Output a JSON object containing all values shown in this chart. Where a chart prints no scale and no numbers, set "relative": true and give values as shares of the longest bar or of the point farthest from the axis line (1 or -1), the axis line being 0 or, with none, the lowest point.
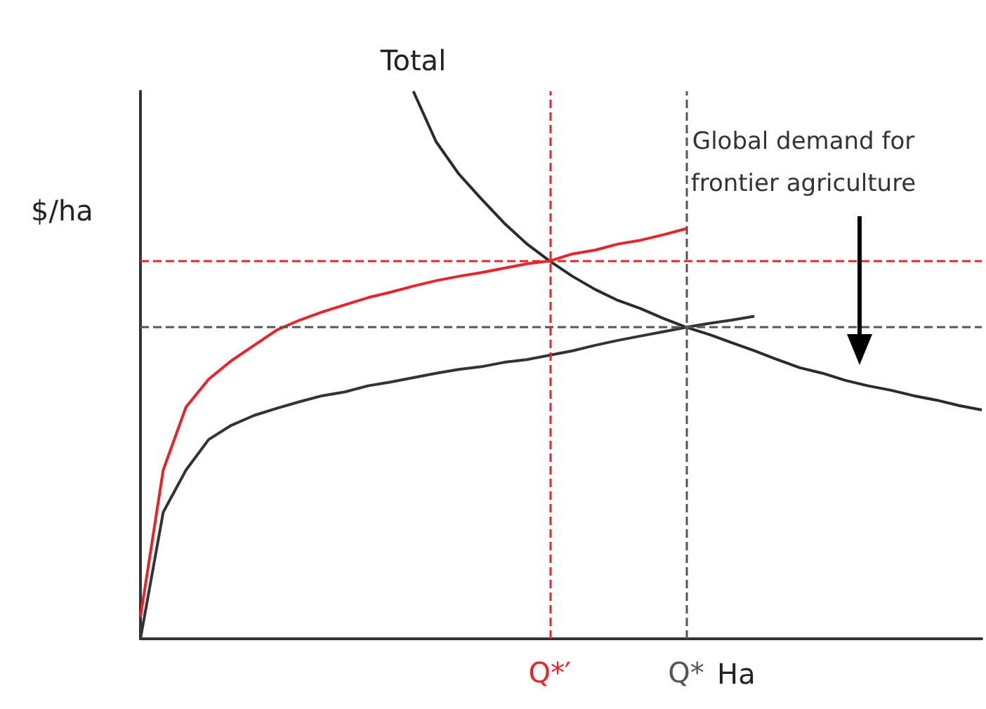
{
  "chart_data": {
    "type": "line",
    "relative": true,
    "ylabel": "$/ha",
    "xlabel": "Ha",
    "legend": false,
    "grid": false,
    "marker": "none",
    "tick_labels": "x",
    "categories": [
      null,
      null,
      null,
      null,
      null,
      null,
      null,
      null,
      null,
      null,
      null,
      null,
      null,
      null,
      null,
      null,
      null,
      null,
      "Q*′",
      null,
      null,
      null,
      null,
      null,
      "Q*",
      null,
      null,
      null,
      null,
      null,
      null,
      null,
      null,
      null,
      null,
      null,
      null,
      null
    ],
    "annotations": [
      "Global demand for\nfrontier agriculture"
    ],
    "series": [
      {
        "name": "Total",
        "color": "#2b2b2b",
        "values": [
          null,
          null,
          null,
          null,
          null,
          null,
          null,
          null,
          null,
          null,
          null,
          null,
          1.0,
          0.908,
          0.849,
          0.803,
          0.759,
          0.721,
          0.69,
          0.662,
          0.638,
          0.618,
          0.603,
          0.585,
          0.569,
          0.556,
          0.541,
          0.526,
          0.51,
          0.495,
          0.485,
          0.472,
          0.462,
          0.454,
          0.444,
          0.436,
          0.426,
          0.418
        ]
      },
      {
        "color": "#e8242a",
        "values": [
          0.04,
          0.308,
          0.423,
          0.474,
          0.508,
          0.536,
          0.564,
          0.582,
          0.597,
          0.61,
          0.623,
          0.633,
          0.644,
          0.654,
          0.662,
          0.669,
          0.677,
          0.685,
          0.69,
          0.703,
          0.71,
          0.721,
          0.728,
          0.738,
          0.749,
          null,
          null,
          null,
          null,
          null,
          null,
          null,
          null,
          null,
          null,
          null,
          null,
          null
        ]
      },
      {
        "color": "#333333",
        "values": [
          0,
          0.231,
          0.308,
          0.364,
          0.39,
          0.408,
          0.421,
          0.433,
          0.444,
          0.451,
          0.462,
          0.469,
          0.477,
          0.485,
          0.492,
          0.497,
          0.505,
          0.51,
          0.518,
          0.526,
          0.536,
          0.545,
          0.553,
          0.561,
          0.569,
          0.576,
          0.582,
          0.589,
          null,
          null,
          null,
          null,
          null,
          null,
          null,
          null,
          null,
          null
        ]
      }
    ],
    "ref_lines": [
      {
        "axis": "y",
        "value": 0.69,
        "color": "#e8242a",
        "line_style": "dashed"
      },
      {
        "axis": "y",
        "value": 0.572,
        "color": "#555555",
        "line_style": "dashed"
      },
      {
        "axis": "x",
        "value": "Q*′",
        "color": "#e8242a",
        "line_style": "dashed"
      },
      {
        "axis": "x",
        "value": "Q*",
        "color": "#555555",
        "line_style": "dashed"
      }
    ]
  }
}
